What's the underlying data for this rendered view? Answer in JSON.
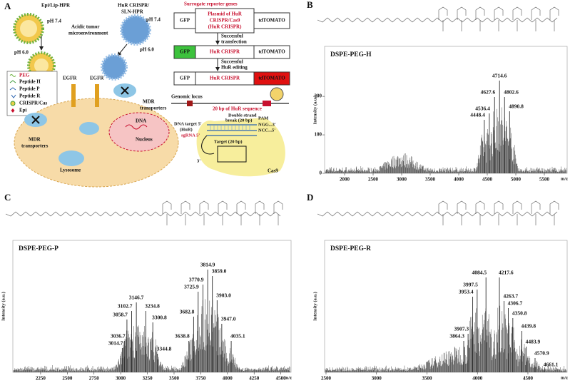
{
  "panel_a": {
    "label": "A",
    "lip": {
      "name": "Epi/Lip-HPR",
      "ph_high": "pH 7.4",
      "ph_low": "pH 6.0"
    },
    "environment": [
      "Acidic tumor",
      "microenvironment"
    ],
    "sln": {
      "name": [
        "HuR CRISPR/",
        "SLN-HPR"
      ],
      "ph_high": "pH 7.4",
      "ph_low": "pH 6.0"
    },
    "legend": [
      "PEG",
      "Peptide H",
      "Peptide P",
      "Peptide R",
      "CRISPR/Cas",
      "Epi"
    ],
    "cell": {
      "egfr_left": "EGFR",
      "egfr_right": "EGFR",
      "mdr_left": [
        "MDR",
        "transporters"
      ],
      "mdr_right": [
        "MDR",
        "transporters"
      ],
      "lysosome": "Lysosome",
      "dna": "DNA",
      "nucleus": "Nucleus"
    },
    "reporter": {
      "title": "Surrogate reporter genes",
      "rows": [
        {
          "gfp": "GFP",
          "insert": [
            "Plasmid of HuR",
            "CRISPR/Cas9",
            "(HuR CRISPR)"
          ],
          "tomato": "tdTOMATO"
        },
        {
          "gfp": "GFP",
          "insert": "HuR CRISPR",
          "tomato": "tdTOMATO"
        },
        {
          "gfp": "GFP",
          "insert": "HuR CRISPR",
          "tomato": "tdTOMATO"
        }
      ],
      "steps": [
        [
          "Successful",
          "transfection"
        ],
        [
          "Successful",
          "HuR editing"
        ]
      ]
    },
    "genome": {
      "locus": "Genomic locus",
      "sequence": "20 bp of HuR sequence",
      "break": [
        "Double strand",
        "break (20 bp)"
      ],
      "pam": "PAM",
      "target": "DNA target 5'",
      "target_gene": "(HuR)",
      "sgrna": "sgRNA 5'",
      "top_end": "NGG...3'",
      "bottom_end": "NCC...5'",
      "target_length": "Target (20 bp)",
      "three_prime": "3'",
      "cas9": "Cas9"
    }
  },
  "spectra": [
    {
      "label": "B",
      "title": "DSPE-PEG-H",
      "y_label": "Intensity (a.u.)",
      "x_label": "m/z",
      "xlim": [
        1650,
        5900
      ],
      "xticks": [
        2000,
        2500,
        3000,
        3500,
        4000,
        4500,
        5000,
        5500
      ],
      "ylim": [
        0,
        330
      ],
      "yticks": [
        0,
        100,
        200
      ],
      "peaks": [
        4714.6,
        4627.6,
        4802.6,
        4536.4,
        4448.4,
        4890.8
      ]
    },
    {
      "label": "C",
      "title": "DSPE-PEG-P",
      "y_label": "Intensity (a.u.)",
      "x_label": "m/z",
      "xlim": [
        1990,
        4596
      ],
      "xticks": [
        2250,
        2500,
        2750,
        3000,
        3250,
        3500,
        3750,
        4000,
        4250,
        4500
      ],
      "peaks": [
        3814.9,
        {
          "value": 3859.0,
          "label": "3859.0"
        },
        3770.9,
        3725.9,
        {
          "value": 3903.0,
          "label": "3903.0"
        },
        3682.8,
        {
          "value": 3947.0,
          "label": "3947.0"
        },
        3638.8,
        4035.1,
        3146.7,
        3102.7,
        3234.8,
        3058.7,
        3300.8,
        3036.7,
        3014.7,
        3344.8
      ]
    },
    {
      "label": "D",
      "title": "DSPE-PEG-R",
      "y_label": "Intensity (a.u.)",
      "x_label": "m/z",
      "xlim": [
        2486,
        4889
      ],
      "xticks": [
        2500,
        3000,
        3500,
        4000,
        4500
      ],
      "peaks": [
        4084.5,
        4217.6,
        3997.5,
        3953.4,
        4263.7,
        4306.7,
        4350.8,
        4439.8,
        3907.3,
        3864.3,
        4483.9,
        4570.9,
        4661.1
      ]
    }
  ]
}
